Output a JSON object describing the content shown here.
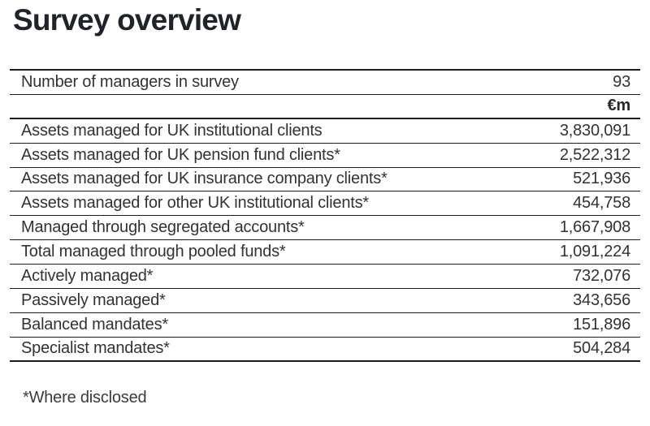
{
  "title": "Survey overview",
  "table": {
    "managers_row": {
      "label": "Number of managers in survey",
      "value": "93"
    },
    "unit_header": "€m",
    "rows": [
      {
        "label": "Assets managed for UK institutional clients",
        "value": "3,830,091"
      },
      {
        "label": "Assets managed for UK pension fund clients*",
        "value": "2,522,312"
      },
      {
        "label": "Assets managed for UK insurance company clients*",
        "value": "521,936"
      },
      {
        "label": "Assets managed for other UK institutional clients*",
        "value": "454,758"
      },
      {
        "label": "Managed through segregated accounts*",
        "value": "1,667,908"
      },
      {
        "label": "Total managed through pooled funds*",
        "value": "1,091,224"
      },
      {
        "label": "Actively managed*",
        "value": "732,076"
      },
      {
        "label": "Passively managed*",
        "value": "343,656"
      },
      {
        "label": "Balanced mandates*",
        "value": "151,896"
      },
      {
        "label": "Specialist mandates*",
        "value": "504,284"
      }
    ]
  },
  "footnote": "*Where disclosed",
  "colors": {
    "background": "#ffffff",
    "title_text": "#20242a",
    "body_text": "#323236",
    "rule": "#1c1c1e"
  }
}
